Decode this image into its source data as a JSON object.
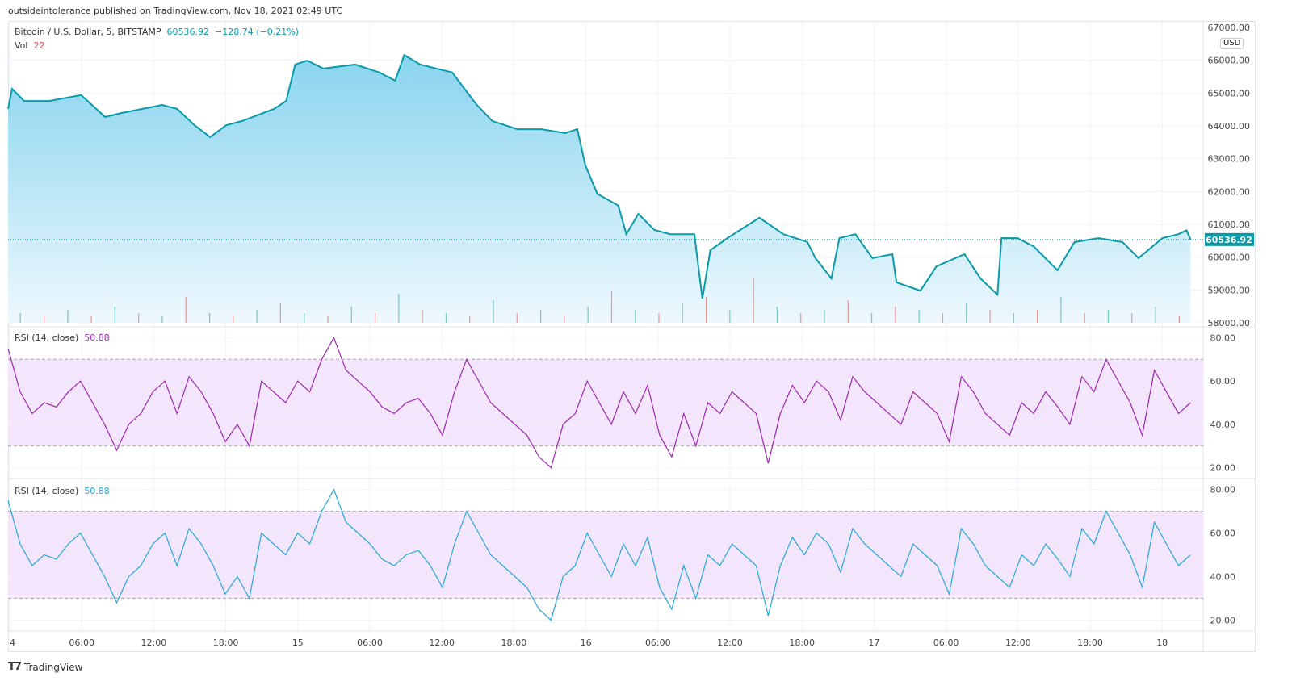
{
  "header": {
    "published": "outsideintolerance published on TradingView.com, Nov 18, 2021 02:49 UTC"
  },
  "legend": {
    "symbol": "Bitcoin / U.S. Dollar, 5, BITSTAMP",
    "price": "60536.92",
    "change": "−128.74 (−0.21%)",
    "vol_label": "Vol",
    "vol_value": "22",
    "rsi1_label": "RSI (14, close)",
    "rsi1_value": "50.88",
    "rsi2_label": "RSI (14, close)",
    "rsi2_value": "50.88"
  },
  "currency": "USD",
  "brand": "TradingView",
  "colors": {
    "price_line": "#089aa8",
    "rsi1": "#9c27b0",
    "rsi2": "#26a7d9",
    "band": "#f3e5fb",
    "vol_up": "#26a69a",
    "vol_down": "#ef5350"
  },
  "chart_data": [
    {
      "type": "area",
      "name": "price",
      "ylim": [
        58000,
        67000
      ],
      "yticks": [
        "58000.00",
        "59000.00",
        "60000.00",
        "61000.00",
        "62000.00",
        "63000.00",
        "64000.00",
        "65000.00",
        "66000.00",
        "67000.00"
      ],
      "last_price_label": "60536.92",
      "xticks": [
        "4",
        "06:00",
        "12:00",
        "18:00",
        "15",
        "06:00",
        "12:00",
        "18:00",
        "16",
        "06:00",
        "12:00",
        "18:00",
        "17",
        "06:00",
        "12:00",
        "18:00",
        "18"
      ],
      "points": [
        [
          "14 00:00",
          64520
        ],
        [
          "14 00:20",
          65130
        ],
        [
          "14 01:20",
          64760
        ],
        [
          "14 03:25",
          64760
        ],
        [
          "14 06:05",
          64940
        ],
        [
          "14 08:05",
          64270
        ],
        [
          "14 09:25",
          64390
        ],
        [
          "14 12:50",
          64640
        ],
        [
          "14 14:05",
          64520
        ],
        [
          "14 15:30",
          64030
        ],
        [
          "14 16:50",
          63660
        ],
        [
          "14 18:10",
          64020
        ],
        [
          "14 19:30",
          64150
        ],
        [
          "14 22:10",
          64520
        ],
        [
          "14 23:10",
          64760
        ],
        [
          "14 23:55",
          65870
        ],
        [
          "15 00:55",
          65990
        ],
        [
          "15 02:15",
          65750
        ],
        [
          "15 04:55",
          65870
        ],
        [
          "15 06:55",
          65630
        ],
        [
          "15 08:15",
          65380
        ],
        [
          "15 09:00",
          66160
        ],
        [
          "15 10:20",
          65870
        ],
        [
          "15 13:00",
          65630
        ],
        [
          "15 14:00",
          65140
        ],
        [
          "15 15:00",
          64660
        ],
        [
          "15 16:20",
          64150
        ],
        [
          "15 18:25",
          63900
        ],
        [
          "15 20:25",
          63900
        ],
        [
          "15 22:25",
          63780
        ],
        [
          "15 23:25",
          63900
        ],
        [
          "16 00:05",
          62800
        ],
        [
          "16 01:05",
          61930
        ],
        [
          "16 02:50",
          61570
        ],
        [
          "16 03:30",
          60700
        ],
        [
          "16 04:30",
          61320
        ],
        [
          "16 05:50",
          60830
        ],
        [
          "16 07:10",
          60700
        ],
        [
          "16 09:10",
          60700
        ],
        [
          "16 09:50",
          58740
        ],
        [
          "16 10:30",
          60210
        ],
        [
          "16 11:55",
          60580
        ],
        [
          "16 14:35",
          61200
        ],
        [
          "16 16:35",
          60700
        ],
        [
          "16 18:35",
          60460
        ],
        [
          "16 19:15",
          59970
        ],
        [
          "16 20:35",
          59350
        ],
        [
          "16 21:15",
          60580
        ],
        [
          "16 22:35",
          60700
        ],
        [
          "17 00:00",
          59970
        ],
        [
          "17 01:40",
          60090
        ],
        [
          "17 02:00",
          59230
        ],
        [
          "17 04:00",
          58980
        ],
        [
          "17 05:20",
          59720
        ],
        [
          "17 07:40",
          60090
        ],
        [
          "17 09:00",
          59350
        ],
        [
          "17 10:25",
          58860
        ],
        [
          "17 10:45",
          60580
        ],
        [
          "17 12:05",
          60580
        ],
        [
          "17 13:25",
          60330
        ],
        [
          "17 15:25",
          59600
        ],
        [
          "17 16:50",
          60460
        ],
        [
          "17 18:50",
          60580
        ],
        [
          "17 20:50",
          60460
        ],
        [
          "17 22:10",
          59970
        ],
        [
          "18 00:10",
          60580
        ],
        [
          "18 01:30",
          60700
        ],
        [
          "18 02:10",
          60820
        ],
        [
          "18 02:30",
          60537
        ]
      ],
      "volume": [
        3,
        2,
        4,
        2,
        5,
        3,
        2,
        8,
        3,
        2,
        4,
        6,
        3,
        2,
        5,
        3,
        9,
        4,
        3,
        2,
        7,
        3,
        4,
        2,
        5,
        10,
        4,
        3,
        6,
        8,
        4,
        14,
        5,
        3,
        4,
        7,
        3,
        5,
        4,
        3,
        6,
        4,
        3,
        4,
        8,
        3,
        4,
        3,
        5,
        2
      ]
    },
    {
      "type": "line",
      "name": "rsi1",
      "ylim": [
        15,
        85
      ],
      "yticks": [
        "20.00",
        "40.00",
        "60.00",
        "80.00"
      ],
      "bands": [
        30,
        70
      ],
      "values": [
        75,
        55,
        45,
        50,
        48,
        55,
        60,
        50,
        40,
        28,
        40,
        45,
        55,
        60,
        45,
        62,
        55,
        45,
        32,
        40,
        30,
        60,
        55,
        50,
        60,
        55,
        70,
        80,
        65,
        60,
        55,
        48,
        45,
        50,
        52,
        45,
        35,
        55,
        70,
        60,
        50,
        45,
        40,
        35,
        25,
        20,
        40,
        45,
        60,
        50,
        40,
        55,
        45,
        58,
        35,
        25,
        45,
        30,
        50,
        45,
        55,
        50,
        45,
        22,
        45,
        58,
        50,
        60,
        55,
        42,
        62,
        55,
        50,
        45,
        40,
        55,
        50,
        45,
        32,
        62,
        55,
        45,
        40,
        35,
        50,
        45,
        55,
        48,
        40,
        62,
        55,
        70,
        60,
        50,
        35,
        65,
        55,
        45,
        50
      ]
    },
    {
      "type": "line",
      "name": "rsi2",
      "ylim": [
        15,
        85
      ],
      "yticks": [
        "20.00",
        "40.00",
        "60.00",
        "80.00"
      ],
      "bands": [
        30,
        70
      ],
      "same_as": "rsi1"
    }
  ]
}
